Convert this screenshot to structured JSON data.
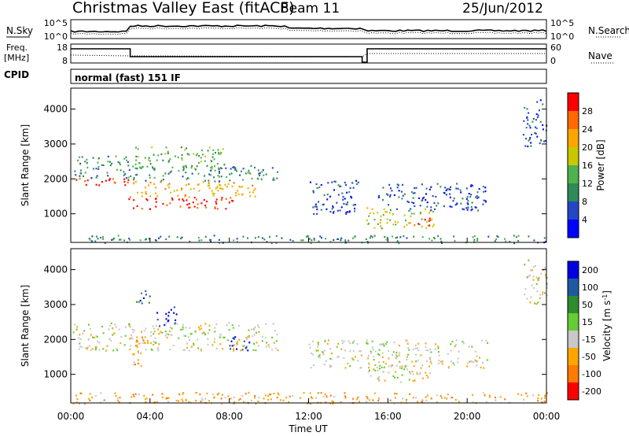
{
  "header": {
    "station": "Christmas Valley East (fitACF)",
    "beam": "Beam 11",
    "date": "25/Jun/2012"
  },
  "panel_labels": {
    "nsky": "N.Sky",
    "nsearch": "N.Search",
    "freq_line1": "Freq.",
    "freq_line2": "[MHz]",
    "nave": "Nave",
    "cpid": "CPID",
    "cpid_value": "normal (fast) 151 IF"
  },
  "noise_axis": {
    "left_ticks": [
      "10^5",
      "10^0"
    ],
    "right_ticks": [
      "10^5",
      "10^0"
    ]
  },
  "freq_axis": {
    "left_ticks": [
      "18",
      "8"
    ],
    "right_ticks": [
      "60",
      "0"
    ]
  },
  "colors": {
    "power_scale": [
      "#0000ff",
      "#2346c8",
      "#2e8b57",
      "#4fb24f",
      "#c8c800",
      "#ffa500",
      "#ff6a00",
      "#ff0000"
    ],
    "velocity_scale": [
      "#0000e0",
      "#1f5aa0",
      "#2e8b2e",
      "#66cc33",
      "#c8c8c8",
      "#ffa500",
      "#ff7a00",
      "#ff0000"
    ]
  },
  "chart_data": [
    {
      "type": "heatmap",
      "name": "power",
      "xlabel": "",
      "ylabel": "Slant Range [km]",
      "xlim_hours": [
        0,
        24
      ],
      "ylim_km": [
        180,
        4600
      ],
      "y_ticks": [
        "1000",
        "2000",
        "3000",
        "4000"
      ],
      "colorbar_label": "Power [dB]",
      "colorbar_ticks": [
        "4",
        "8",
        "12",
        "16",
        "20",
        "24",
        "28"
      ],
      "echo_regions": [
        {
          "t0": 0.1,
          "t1": 3.0,
          "r0": 1800,
          "r1": 2050,
          "level": 7
        },
        {
          "t0": 0.1,
          "t1": 3.0,
          "r0": 2050,
          "r1": 2700,
          "level": 2
        },
        {
          "t0": 2.9,
          "t1": 8.3,
          "r0": 1150,
          "r1": 1500,
          "level": 7
        },
        {
          "t0": 3.0,
          "t1": 9.3,
          "r0": 1500,
          "r1": 1950,
          "level": 5
        },
        {
          "t0": 3.2,
          "t1": 7.8,
          "r0": 2300,
          "r1": 2950,
          "level": 3
        },
        {
          "t0": 3.0,
          "t1": 10.5,
          "r0": 1950,
          "r1": 2400,
          "level": 2
        },
        {
          "t0": 14.9,
          "t1": 18.3,
          "r0": 600,
          "r1": 1200,
          "level": 4
        },
        {
          "t0": 17.2,
          "t1": 18.2,
          "r0": 650,
          "r1": 900,
          "level": 7
        },
        {
          "t0": 15.5,
          "t1": 21.0,
          "r0": 1100,
          "r1": 1900,
          "level": 1
        },
        {
          "t0": 12.0,
          "t1": 14.5,
          "r0": 1000,
          "r1": 2000,
          "level": 1
        },
        {
          "t0": 22.8,
          "t1": 24.0,
          "r0": 2900,
          "r1": 4300,
          "level": 1
        },
        {
          "t0": 0.1,
          "t1": 24.0,
          "r0": 180,
          "r1": 400,
          "level": 2
        }
      ]
    },
    {
      "type": "heatmap",
      "name": "velocity",
      "xlabel": "Time UT",
      "ylabel": "Slant Range [km]",
      "xlim_hours": [
        0,
        24
      ],
      "ylim_km": [
        180,
        4600
      ],
      "x_ticks": [
        "00:00",
        "04:00",
        "08:00",
        "12:00",
        "16:00",
        "20:00",
        "00:00"
      ],
      "y_ticks": [
        "1000",
        "2000",
        "3000",
        "4000"
      ],
      "colorbar_label": "Velocity [m s^-1]",
      "colorbar_ticks": [
        "200",
        "100",
        "50",
        "15",
        "-15",
        "-50",
        "-100",
        "-200"
      ],
      "echo_regions": [
        {
          "t0": 0.1,
          "t1": 10.5,
          "r0": 1700,
          "r1": 2500,
          "level": 4
        },
        {
          "t0": 2.9,
          "t1": 3.8,
          "r0": 1250,
          "r1": 2100,
          "level": 5
        },
        {
          "t0": 4.3,
          "t1": 5.3,
          "r0": 2400,
          "r1": 2950,
          "level": 0
        },
        {
          "t0": 7.9,
          "t1": 9.1,
          "r0": 1700,
          "r1": 2100,
          "level": 0
        },
        {
          "t0": 3.2,
          "t1": 4.0,
          "r0": 3050,
          "r1": 3500,
          "level": 1
        },
        {
          "t0": 14.9,
          "t1": 18.3,
          "r0": 800,
          "r1": 1300,
          "level": 4
        },
        {
          "t0": 12.0,
          "t1": 21.0,
          "r0": 1200,
          "r1": 2000,
          "level": 4
        },
        {
          "t0": 22.8,
          "t1": 24.0,
          "r0": 3000,
          "r1": 4300,
          "level": 4
        },
        {
          "t0": 0.1,
          "t1": 24.0,
          "r0": 180,
          "r1": 500,
          "level": 5
        }
      ]
    }
  ]
}
